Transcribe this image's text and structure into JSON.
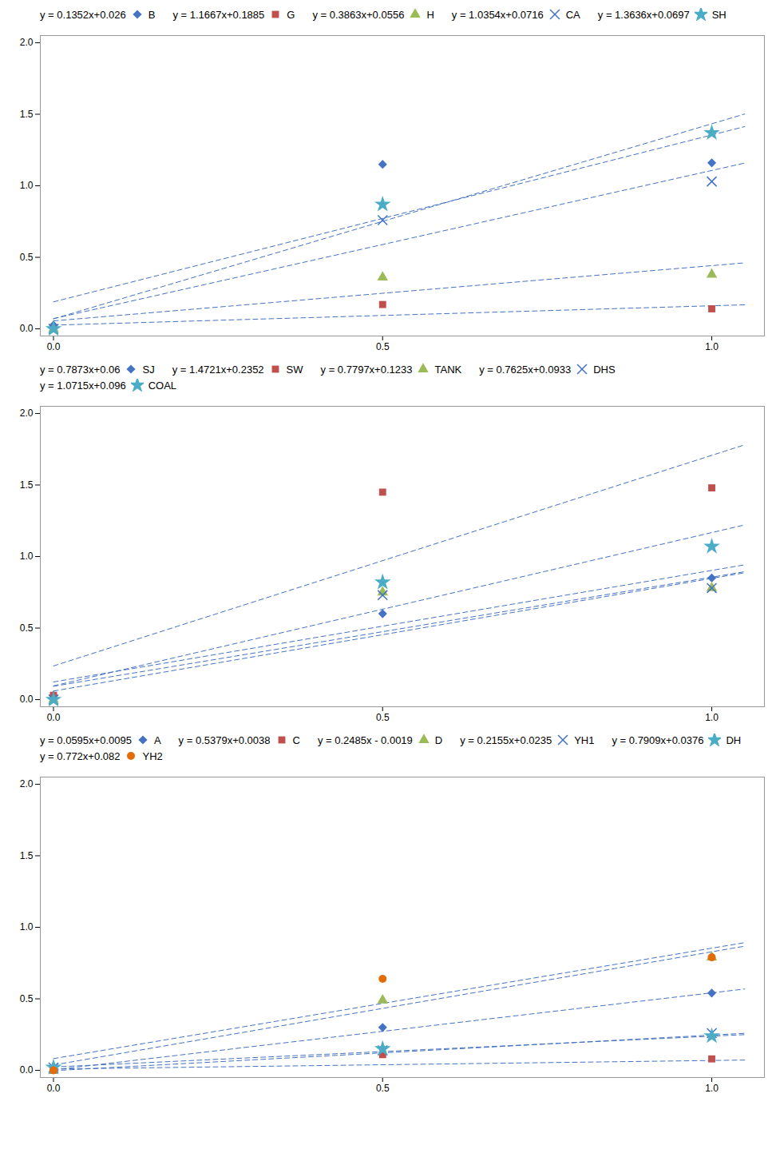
{
  "chart_data": [
    {
      "type": "scatter",
      "xlim": [
        -0.02,
        1.08
      ],
      "ylim": [
        -0.05,
        2.05
      ],
      "xticks": [
        {
          "value": 0,
          "label": "0.0"
        },
        0.5,
        {
          "value": 1,
          "label": "1.0"
        }
      ],
      "yticks": [
        {
          "value": 0,
          "label": "0.0"
        },
        0.5,
        {
          "value": 1,
          "label": "1.0"
        },
        1.5,
        {
          "value": 2,
          "label": "2.0"
        }
      ],
      "grid": false,
      "legend": "top",
      "series": [
        {
          "name": "B",
          "color": "#4472C4",
          "marker": "diamond",
          "equation": "y = 0.1352x+0.026",
          "x": [
            0,
            0.5,
            1
          ],
          "values": [
            0.026,
            1.15,
            1.16
          ],
          "trendline": {
            "color": "#4472C4",
            "line_style": "dashed",
            "x": [
              0,
              1.05
            ],
            "values": [
              0.026,
              0.16796
            ]
          }
        },
        {
          "name": "G",
          "color": "#C0504D",
          "marker": "square",
          "equation": "y = 1.1667x+0.1885",
          "x": [
            0,
            0.5,
            1
          ],
          "values": [
            0.0,
            0.17,
            0.14
          ],
          "trendline": {
            "color": "#4472C4",
            "line_style": "dashed",
            "x": [
              0,
              1.05
            ],
            "values": [
              0.1885,
              1.413535
            ]
          }
        },
        {
          "name": "H",
          "color": "#9BBB59",
          "marker": "triangle",
          "equation": "y = 0.3863x+0.0556",
          "x": [
            0,
            0.5,
            1
          ],
          "values": [
            0.0,
            0.36,
            0.38
          ],
          "trendline": {
            "color": "#4472C4",
            "line_style": "dashed",
            "x": [
              0,
              1.05
            ],
            "values": [
              0.0556,
              0.461215
            ]
          }
        },
        {
          "name": "CA",
          "color": "#4472C4",
          "marker": "x",
          "equation": "y = 1.0354x+0.0716",
          "x": [
            0,
            0.5,
            1
          ],
          "values": [
            0.0,
            0.76,
            1.03
          ],
          "trendline": {
            "color": "#4472C4",
            "line_style": "dashed",
            "x": [
              0,
              1.05
            ],
            "values": [
              0.0716,
              1.15877
            ]
          }
        },
        {
          "name": "SH",
          "color": "#4BACC6",
          "marker": "star",
          "equation": "y = 1.3636x+0.0697",
          "x": [
            0,
            0.5,
            1
          ],
          "values": [
            0.0,
            0.87,
            1.37
          ],
          "trendline": {
            "color": "#4472C4",
            "line_style": "dashed",
            "x": [
              0,
              1.05
            ],
            "values": [
              0.0697,
              1.50148
            ]
          }
        }
      ]
    },
    {
      "type": "scatter",
      "xlim": [
        -0.02,
        1.08
      ],
      "ylim": [
        -0.05,
        2.05
      ],
      "xticks": [
        {
          "value": 0,
          "label": "0.0"
        },
        0.5,
        {
          "value": 1,
          "label": "1.0"
        }
      ],
      "yticks": [
        {
          "value": 0,
          "label": "0.0"
        },
        0.5,
        {
          "value": 1,
          "label": "1.0"
        },
        1.5,
        {
          "value": 2,
          "label": "2.0"
        }
      ],
      "grid": false,
      "legend": "top",
      "series": [
        {
          "name": "SJ",
          "color": "#4472C4",
          "marker": "diamond",
          "equation": "y = 0.7873x+0.06",
          "x": [
            0,
            0.5,
            1
          ],
          "values": [
            0.03,
            0.6,
            0.85
          ],
          "trendline": {
            "color": "#4472C4",
            "line_style": "dashed",
            "x": [
              0,
              1.05
            ],
            "values": [
              0.06,
              0.886665
            ]
          }
        },
        {
          "name": "SW",
          "color": "#C0504D",
          "marker": "square",
          "equation": "y = 1.4721x+0.2352",
          "x": [
            0,
            0.5,
            1
          ],
          "values": [
            0.03,
            1.45,
            1.48
          ],
          "trendline": {
            "color": "#4472C4",
            "line_style": "dashed",
            "x": [
              0,
              1.05
            ],
            "values": [
              0.2352,
              1.780905
            ]
          }
        },
        {
          "name": "TANK",
          "color": "#9BBB59",
          "marker": "triangle",
          "equation": "y = 0.7797x+0.1233",
          "x": [
            0,
            0.5,
            1
          ],
          "values": [
            0.0,
            0.75,
            0.78
          ],
          "trendline": {
            "color": "#4472C4",
            "line_style": "dashed",
            "x": [
              0,
              1.05
            ],
            "values": [
              0.1233,
              0.941985
            ]
          }
        },
        {
          "name": "DHS",
          "color": "#4472C4",
          "marker": "x",
          "equation": "y = 0.7625x+0.0933",
          "x": [
            0,
            0.5,
            1
          ],
          "values": [
            0.0,
            0.73,
            0.78
          ],
          "trendline": {
            "color": "#4472C4",
            "line_style": "dashed",
            "x": [
              0,
              1.05
            ],
            "values": [
              0.0933,
              0.893925
            ]
          }
        },
        {
          "name": "COAL",
          "color": "#4BACC6",
          "marker": "star",
          "equation": "y = 1.0715x+0.096",
          "x": [
            0,
            0.5,
            1
          ],
          "values": [
            0.0,
            0.82,
            1.07
          ],
          "trendline": {
            "color": "#4472C4",
            "line_style": "dashed",
            "x": [
              0,
              1.05
            ],
            "values": [
              0.096,
              1.221075
            ]
          }
        }
      ]
    },
    {
      "type": "scatter",
      "xlim": [
        -0.02,
        1.08
      ],
      "ylim": [
        -0.05,
        2.05
      ],
      "xticks": [
        {
          "value": 0,
          "label": "0.0"
        },
        0.5,
        {
          "value": 1,
          "label": "1.0"
        }
      ],
      "yticks": [
        {
          "value": 0,
          "label": "0.0"
        },
        0.5,
        {
          "value": 1,
          "label": "1.0"
        },
        1.5,
        {
          "value": 2,
          "label": "2.0"
        }
      ],
      "grid": false,
      "legend": "top",
      "series": [
        {
          "name": "A",
          "color": "#4472C4",
          "marker": "diamond",
          "equation": "y = 0.0595x+0.0095",
          "x": [
            0,
            0.5,
            1
          ],
          "values": [
            0.02,
            0.3,
            0.54
          ],
          "trendline": {
            "color": "#4472C4",
            "line_style": "dashed",
            "x": [
              0,
              1.05
            ],
            "values": [
              0.0095,
              0.071975
            ]
          }
        },
        {
          "name": "C",
          "color": "#C0504D",
          "marker": "square",
          "equation": "y = 0.5379x+0.0038",
          "x": [
            0,
            0.5,
            1
          ],
          "values": [
            0.0,
            0.11,
            0.08
          ],
          "trendline": {
            "color": "#4472C4",
            "line_style": "dashed",
            "x": [
              0,
              1.05
            ],
            "values": [
              0.0038,
              0.568595
            ]
          }
        },
        {
          "name": "D",
          "color": "#9BBB59",
          "marker": "triangle",
          "equation": "y = 0.2485x - 0.0019",
          "x": [
            0,
            0.5,
            1
          ],
          "values": [
            0.0,
            0.49,
            0.79
          ],
          "trendline": {
            "color": "#4472C4",
            "line_style": "dashed",
            "x": [
              0,
              1.05
            ],
            "values": [
              -0.0019,
              0.259025
            ]
          }
        },
        {
          "name": "YH1",
          "color": "#4472C4",
          "marker": "x",
          "equation": "y = 0.2155x+0.0235",
          "x": [
            0,
            0.5,
            1
          ],
          "values": [
            0.02,
            0.14,
            0.26
          ],
          "trendline": {
            "color": "#4472C4",
            "line_style": "dashed",
            "x": [
              0,
              1.05
            ],
            "values": [
              0.0235,
              0.249775
            ]
          }
        },
        {
          "name": "DH",
          "color": "#4BACC6",
          "marker": "star",
          "equation": "y = 0.7909x+0.0376",
          "x": [
            0,
            0.5,
            1
          ],
          "values": [
            0.02,
            0.15,
            0.24
          ],
          "trendline": {
            "color": "#4472C4",
            "line_style": "dashed",
            "x": [
              0,
              1.05
            ],
            "values": [
              0.0376,
              0.868045
            ]
          }
        },
        {
          "name": "YH2",
          "color": "#E36C09",
          "marker": "circle",
          "equation": "y = 0.772x+0.082",
          "x": [
            0,
            0.5,
            1
          ],
          "values": [
            0.0,
            0.64,
            0.79
          ],
          "trendline": {
            "color": "#4472C4",
            "line_style": "dashed",
            "x": [
              0,
              1.05
            ],
            "values": [
              0.082,
              0.8926
            ]
          }
        }
      ]
    }
  ]
}
